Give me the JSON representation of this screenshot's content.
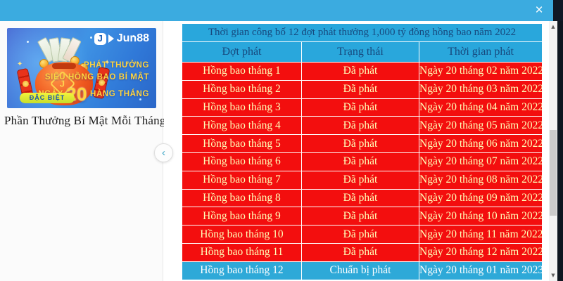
{
  "colors": {
    "topbar_cyan": "#3babe0",
    "table_header_cyan": "#29a7dc",
    "row_red": "#f30e0e",
    "row_text_yellow": "#ffffb8",
    "header_text_navy": "#17497e",
    "highlight_row_cyan": "#2ea9d8",
    "highlight_row_text": "#ffffff",
    "page_edge_dark": "#0e1620",
    "banner_gold": "#ffd53e"
  },
  "topbar": {
    "close_label": "×"
  },
  "sidebar": {
    "banner": {
      "logo_text": "Jun88",
      "logo_mark": "J",
      "line1": "PHÁT THƯỞNG",
      "line2": "SIÊU HỒNG BAO BÍ MẬT",
      "line3_prefix": "NGÀY",
      "line3_number": "20",
      "line3_suffix": "HÀNG THÁNG",
      "bag_monogram": "J",
      "badge": "ĐẶC BIỆT",
      "spark": "✦"
    },
    "caption": "Phần Thưởng Bí Mật Mỗi Tháng"
  },
  "collapse_button": {
    "chevron": "‹"
  },
  "table": {
    "title": "Thời gian công bố 12 đợt phát thưởng 1,000 tỷ đồng hồng bao năm 2022",
    "columns": [
      "Đợt phát",
      "Trạng thái",
      "Thời gian phát"
    ],
    "rows": [
      {
        "batch": "Hồng bao tháng 1",
        "status": "Đã phát",
        "date": "Ngày 20 tháng 02 năm 2022"
      },
      {
        "batch": "Hồng bao tháng 2",
        "status": "Đã phát",
        "date": "Ngày 20 tháng 03 năm 2022"
      },
      {
        "batch": "Hồng bao tháng 3",
        "status": "Đã phát",
        "date": "Ngày 20 tháng 04 năm 2022"
      },
      {
        "batch": "Hồng bao tháng 4",
        "status": "Đã phát",
        "date": "Ngày 20 tháng 05 năm 2022"
      },
      {
        "batch": "Hồng bao tháng 5",
        "status": "Đã phát",
        "date": "Ngày 20 tháng 06 năm 2022"
      },
      {
        "batch": "Hồng bao tháng 6",
        "status": "Đã phát",
        "date": "Ngày 20 tháng 07 năm 2022"
      },
      {
        "batch": "Hồng bao tháng 7",
        "status": "Đã phát",
        "date": "Ngày 20 tháng 08 năm 2022"
      },
      {
        "batch": "Hồng bao tháng 8",
        "status": "Đã phát",
        "date": "Ngày 20 tháng 09 năm 2022"
      },
      {
        "batch": "Hồng bao tháng 9",
        "status": "Đã phát",
        "date": "Ngày 20 tháng 10 năm 2022"
      },
      {
        "batch": "Hồng bao tháng 10",
        "status": "Đã phát",
        "date": "Ngày 20 tháng 11 năm 2022"
      },
      {
        "batch": "Hồng bao tháng 11",
        "status": "Đã phát",
        "date": "Ngày 20 tháng 12 năm 2022"
      },
      {
        "batch": "Hồng bao tháng 12",
        "status": "Chuẩn bị phát",
        "date": "Ngày 20 tháng 01 năm 2023"
      }
    ]
  },
  "scrollbar": {
    "up": "▲",
    "down": "▼"
  }
}
